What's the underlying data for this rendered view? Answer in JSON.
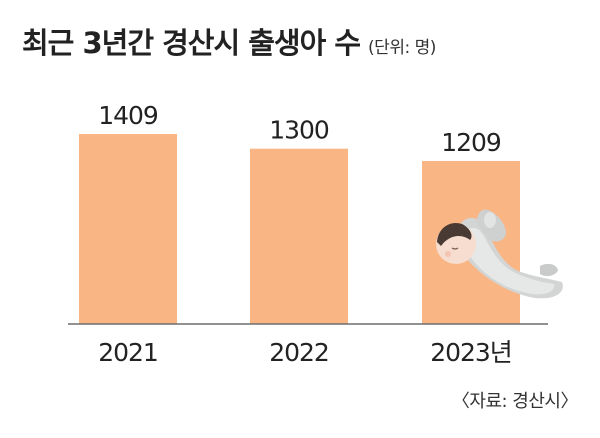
{
  "header": {
    "title": "최근 3년간 경산시 출생아 수",
    "unit": "(단위: 명)"
  },
  "source": "〈자료: 경산시〉",
  "colors": {
    "bar": "#F9B584",
    "axis": "#6e6e6e",
    "text": "#222222"
  },
  "chart_data": {
    "type": "bar",
    "title": "최근 3년간 경산시 출생아 수",
    "categories": [
      "2021",
      "2022",
      "2023년"
    ],
    "values": [
      1409,
      1300,
      1209
    ],
    "value_labels": [
      "1409",
      "1300",
      "1209"
    ],
    "xlabel": "",
    "ylabel": "",
    "ylim": [
      0,
      1409
    ],
    "grid": false,
    "legend": "none"
  },
  "illustration": {
    "icon": "sleeping-baby-icon"
  }
}
